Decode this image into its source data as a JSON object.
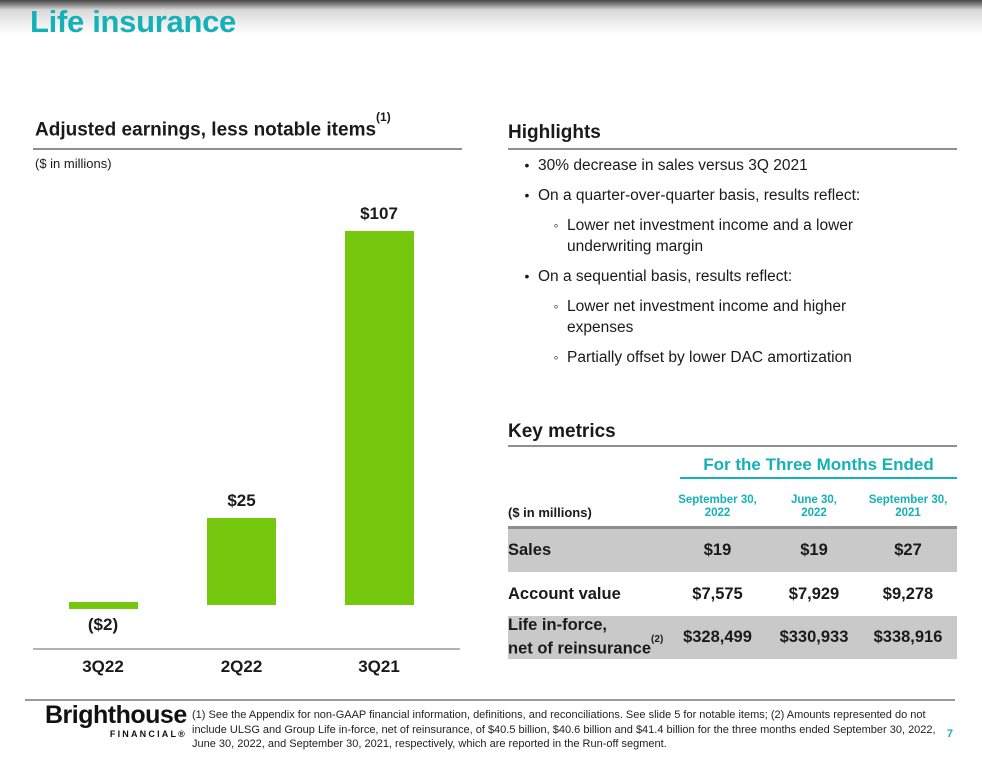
{
  "page": {
    "title": "Life insurance"
  },
  "colors": {
    "teal": "#14b1b7",
    "bar_green": "#76c80e",
    "shaded_row_gray": "#c9c9c9"
  },
  "chart_data": {
    "type": "bar",
    "title": "Adjusted earnings, less notable items",
    "title_superscript": "(1)",
    "units_label": "($ in millions)",
    "categories": [
      "3Q22",
      "2Q22",
      "3Q21"
    ],
    "values": [
      -2,
      25,
      107
    ],
    "bars": [
      {
        "label": "3Q22",
        "value": -2,
        "display": "($2)"
      },
      {
        "label": "2Q22",
        "value": 25,
        "display": "$25"
      },
      {
        "label": "3Q21",
        "value": 107,
        "display": "$107"
      }
    ],
    "bar_color": "#76c80e",
    "ylim": [
      -10,
      120
    ],
    "grid": false,
    "legend": false,
    "data_labels": true
  },
  "highlights": {
    "heading": "Highlights",
    "items": [
      {
        "level": 1,
        "text": "30% decrease in sales versus 3Q 2021"
      },
      {
        "level": 1,
        "text": "On a quarter-over-quarter basis, results reflect:"
      },
      {
        "level": 2,
        "text": "Lower net investment income and a lower underwriting margin"
      },
      {
        "level": 1,
        "text": "On a sequential basis, results reflect:"
      },
      {
        "level": 2,
        "text": "Lower net investment income and higher expenses"
      },
      {
        "level": 2,
        "text": "Partially offset by lower DAC amortization"
      }
    ]
  },
  "key_metrics": {
    "heading": "Key metrics",
    "group_header": "For the Three Months Ended",
    "unit_label": "($ in millions)",
    "columns": [
      "September 30,\n2022",
      "June 30,\n2022",
      "September 30,\n2021"
    ],
    "rows": [
      {
        "label": "Sales",
        "values": [
          "$19",
          "$19",
          "$27"
        ],
        "shaded": true
      },
      {
        "label": "Account value",
        "values": [
          "$7,575",
          "$7,929",
          "$9,278"
        ],
        "shaded": false
      },
      {
        "label": "Life in-force,\nnet of reinsurance",
        "label_superscript": "(2)",
        "values": [
          "$328,499",
          "$330,933",
          "$338,916"
        ],
        "shaded": true
      }
    ]
  },
  "footer": {
    "logo_primary": "Brighthouse",
    "logo_secondary": "FINANCIAL®",
    "footnote": "(1) See the Appendix for non-GAAP financial information, definitions, and reconciliations. See slide 5 for notable items; (2) Amounts represented do not include ULSG and Group Life in-force, net of reinsurance, of $40.5 billion, $40.6 billion and $41.4 billion for the three months ended September 30, 2022, June 30, 2022, and September 30, 2021, respectively, which are reported in the Run-off segment.",
    "page_number": "7"
  }
}
